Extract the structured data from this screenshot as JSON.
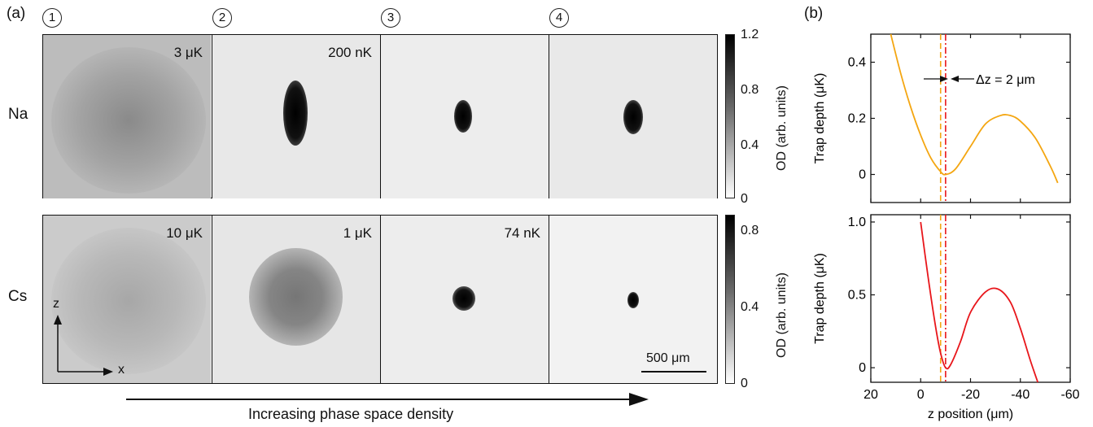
{
  "panel_a": {
    "label": "(a)",
    "steps": [
      "1",
      "2",
      "3",
      "4"
    ],
    "rows": [
      {
        "name": "Na",
        "temperatures": [
          "3 μK",
          "200 nK",
          "",
          ""
        ],
        "colorbar": {
          "ticks": [
            "1.2",
            "0.8",
            "0.4",
            "0"
          ],
          "label": "OD (arb. units)"
        }
      },
      {
        "name": "Cs",
        "temperatures": [
          "10 μK",
          "1 μK",
          "74 nK",
          ""
        ],
        "colorbar": {
          "ticks": [
            "0.8",
            "0.4",
            "0"
          ],
          "label": "OD (arb. units)"
        }
      }
    ],
    "axes_labels": {
      "z": "z",
      "x": "x"
    },
    "scale_bar": "500 μm",
    "arrow_caption": "Increasing phase space density"
  },
  "panel_b": {
    "label": "(b)",
    "delta_label": "Δz = 2 μm",
    "colors": {
      "na": "#f4a611",
      "cs": "#e8161b",
      "dash_orange": "#f4a611",
      "dash_red": "#e8161b"
    }
  },
  "chart_data": [
    {
      "type": "line",
      "ylabel": "Trap depth (μK)",
      "xlim": [
        20,
        -60
      ],
      "ylim": [
        -0.1,
        0.5
      ],
      "yticks": [
        "0.4",
        "0.2",
        "0"
      ],
      "series": [
        {
          "x": [
            12,
            8,
            4,
            0,
            -4,
            -8,
            -10,
            -14,
            -20,
            -26,
            -32,
            -36,
            -40,
            -46,
            -52,
            -55
          ],
          "y": [
            0.5,
            0.36,
            0.24,
            0.14,
            0.06,
            0.01,
            0.0,
            0.02,
            0.1,
            0.18,
            0.21,
            0.21,
            0.19,
            0.13,
            0.03,
            -0.03
          ]
        }
      ],
      "vlines": [
        -8,
        -10
      ]
    },
    {
      "type": "line",
      "xlabel": "z position (μm)",
      "ylabel": "Trap depth (μK)",
      "xlim": [
        20,
        -60
      ],
      "ylim": [
        -0.1,
        1.05
      ],
      "xticks": [
        "20",
        "0",
        "-20",
        "-40",
        "-60"
      ],
      "yticks": [
        "1.0",
        "0.5",
        "0"
      ],
      "series": [
        {
          "x": [
            0,
            -3,
            -6,
            -8,
            -10,
            -12,
            -16,
            -20,
            -26,
            -31,
            -36,
            -40,
            -44,
            -47
          ],
          "y": [
            1.0,
            0.62,
            0.28,
            0.1,
            0.0,
            0.02,
            0.18,
            0.38,
            0.52,
            0.54,
            0.45,
            0.27,
            0.05,
            -0.1
          ]
        }
      ],
      "vlines": [
        -8,
        -10
      ]
    }
  ]
}
